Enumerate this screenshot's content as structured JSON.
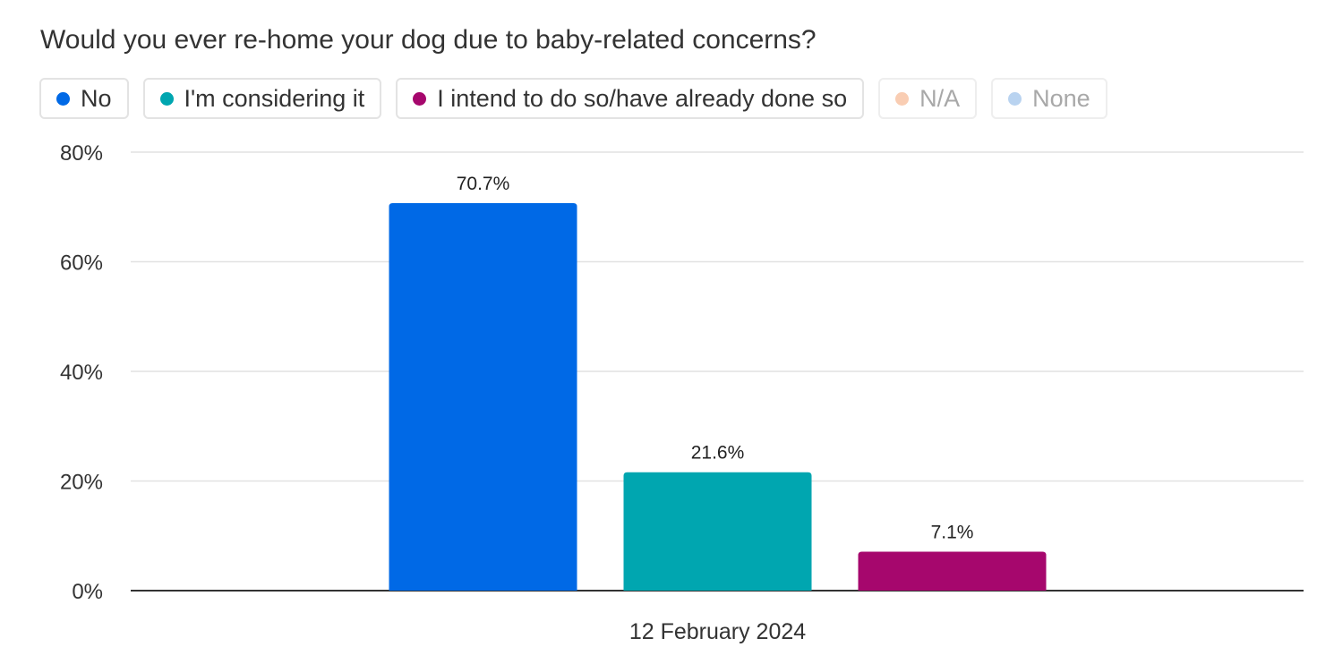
{
  "chart_data": {
    "type": "bar",
    "title": "Would you ever re-home your dog due to baby-related concerns?",
    "categories": [
      "12 February 2024"
    ],
    "series": [
      {
        "name": "No",
        "values": [
          70.7
        ],
        "color": "#0069e6",
        "label": "70.7%",
        "visible": true
      },
      {
        "name": "I'm considering it",
        "values": [
          21.6
        ],
        "color": "#00a6b0",
        "label": "21.6%",
        "visible": true
      },
      {
        "name": "I intend to do so/have already done so",
        "values": [
          7.1
        ],
        "color": "#a6076d",
        "label": "7.1%",
        "visible": true
      },
      {
        "name": "N/A",
        "values": [
          null
        ],
        "color": "#f9cdb3",
        "label": "",
        "visible": false
      },
      {
        "name": "None",
        "values": [
          null
        ],
        "color": "#b9d3f0",
        "label": "",
        "visible": false
      }
    ],
    "ylim": [
      0,
      80
    ],
    "yticks": [
      0,
      20,
      40,
      60,
      80
    ],
    "ytick_labels": [
      "0%",
      "20%",
      "40%",
      "60%",
      "80%"
    ],
    "xlabel": "",
    "ylabel": "",
    "grid": true,
    "legend_position": "top-left"
  }
}
